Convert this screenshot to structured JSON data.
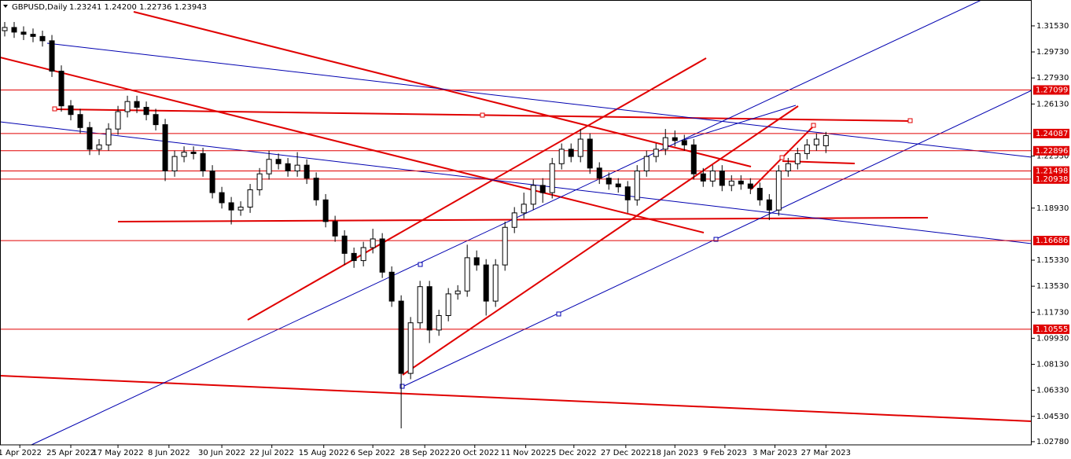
{
  "chart_data": {
    "type": "candlestick",
    "title": "GBPUSD,Daily",
    "subtitle": "1.23241 1.24200 1.22736 1.23943",
    "open": [
      1.312,
      1.3142,
      1.311,
      1.3095,
      1.308,
      1.305,
      1.284,
      1.26,
      1.254,
      1.245,
      1.23,
      1.233,
      1.244,
      1.256,
      1.263,
      1.259,
      1.254,
      1.247,
      1.215,
      1.225,
      1.228,
      1.227,
      1.215,
      1.2,
      1.193,
      1.188,
      1.19,
      1.202,
      1.213,
      1.223,
      1.22,
      1.215,
      1.219,
      1.21,
      1.195,
      1.18,
      1.17,
      1.158,
      1.153,
      1.162,
      1.168,
      1.145,
      1.125,
      1.075,
      1.11,
      1.135,
      1.105,
      1.115,
      1.13,
      1.132,
      1.155,
      1.15,
      1.125,
      1.15,
      1.176,
      1.186,
      1.192,
      1.205,
      1.2,
      1.22,
      1.23,
      1.225,
      1.237,
      1.217,
      1.21,
      1.206,
      1.204,
      1.195,
      1.215,
      1.225,
      1.23,
      1.238,
      1.236,
      1.233,
      1.213,
      1.208,
      1.215,
      1.205,
      1.208,
      1.206,
      1.203,
      1.195,
      1.188,
      1.215,
      1.22,
      1.227,
      1.233,
      1.23241
    ],
    "high": [
      1.318,
      1.318,
      1.315,
      1.3135,
      1.312,
      1.309,
      1.288,
      1.264,
      1.258,
      1.249,
      1.237,
      1.248,
      1.26,
      1.267,
      1.267,
      1.263,
      1.258,
      1.251,
      1.229,
      1.232,
      1.232,
      1.231,
      1.219,
      1.204,
      1.197,
      1.194,
      1.206,
      1.217,
      1.229,
      1.227,
      1.224,
      1.228,
      1.223,
      1.214,
      1.199,
      1.184,
      1.174,
      1.162,
      1.166,
      1.175,
      1.172,
      1.149,
      1.129,
      1.114,
      1.139,
      1.139,
      1.119,
      1.134,
      1.136,
      1.164,
      1.16,
      1.154,
      1.154,
      1.18,
      1.19,
      1.2,
      1.209,
      1.21,
      1.224,
      1.234,
      1.234,
      1.244,
      1.241,
      1.221,
      1.214,
      1.21,
      1.208,
      1.219,
      1.229,
      1.234,
      1.244,
      1.243,
      1.24,
      1.237,
      1.217,
      1.219,
      1.219,
      1.212,
      1.212,
      1.21,
      1.207,
      1.199,
      1.219,
      1.224,
      1.231,
      1.237,
      1.241,
      1.242
    ],
    "low": [
      1.308,
      1.307,
      1.3055,
      1.304,
      1.301,
      1.28,
      1.256,
      1.25,
      1.241,
      1.226,
      1.226,
      1.229,
      1.24,
      1.252,
      1.255,
      1.25,
      1.243,
      1.208,
      1.211,
      1.221,
      1.223,
      1.211,
      1.196,
      1.189,
      1.178,
      1.184,
      1.186,
      1.198,
      1.209,
      1.216,
      1.211,
      1.211,
      1.206,
      1.191,
      1.176,
      1.166,
      1.15,
      1.148,
      1.149,
      1.158,
      1.141,
      1.121,
      1.037,
      1.071,
      1.106,
      1.096,
      1.101,
      1.111,
      1.126,
      1.128,
      1.146,
      1.115,
      1.121,
      1.146,
      1.172,
      1.182,
      1.188,
      1.193,
      1.196,
      1.216,
      1.221,
      1.221,
      1.213,
      1.206,
      1.202,
      1.2,
      1.186,
      1.191,
      1.211,
      1.221,
      1.226,
      1.232,
      1.229,
      1.209,
      1.204,
      1.204,
      1.201,
      1.201,
      1.202,
      1.199,
      1.191,
      1.181,
      1.184,
      1.211,
      1.216,
      1.223,
      1.229,
      1.22736
    ],
    "close": [
      1.3142,
      1.311,
      1.3095,
      1.308,
      1.305,
      1.284,
      1.26,
      1.254,
      1.245,
      1.23,
      1.233,
      1.244,
      1.256,
      1.263,
      1.259,
      1.254,
      1.247,
      1.215,
      1.225,
      1.228,
      1.227,
      1.215,
      1.2,
      1.193,
      1.188,
      1.19,
      1.202,
      1.213,
      1.223,
      1.22,
      1.215,
      1.219,
      1.21,
      1.195,
      1.18,
      1.17,
      1.158,
      1.153,
      1.162,
      1.168,
      1.145,
      1.125,
      1.075,
      1.11,
      1.135,
      1.105,
      1.115,
      1.13,
      1.132,
      1.155,
      1.15,
      1.125,
      1.15,
      1.176,
      1.186,
      1.192,
      1.205,
      1.2,
      1.22,
      1.23,
      1.225,
      1.237,
      1.217,
      1.21,
      1.206,
      1.204,
      1.195,
      1.215,
      1.225,
      1.23,
      1.238,
      1.236,
      1.233,
      1.213,
      1.208,
      1.215,
      1.205,
      1.208,
      1.206,
      1.203,
      1.195,
      1.188,
      1.215,
      1.22,
      1.227,
      1.233,
      1.237,
      1.23943
    ],
    "xlim": [
      -0.5,
      108.8
    ],
    "xticks": [
      {
        "value": 1.6,
        "label": "1 Apr 2022"
      },
      {
        "value": 7,
        "label": "25 Apr 2022"
      },
      {
        "value": 12,
        "label": "17 May 2022"
      },
      {
        "value": 17.4,
        "label": "8 Jun 2022"
      },
      {
        "value": 23,
        "label": "30 Jun 2022"
      },
      {
        "value": 28.3,
        "label": "22 Jul 2022"
      },
      {
        "value": 33.8,
        "label": "15 Aug 2022"
      },
      {
        "value": 39,
        "label": "6 Sep 2022"
      },
      {
        "value": 44.5,
        "label": "28 Sep 2022"
      },
      {
        "value": 49.8,
        "label": "20 Oct 2022"
      },
      {
        "value": 55.2,
        "label": "11 Nov 2022"
      },
      {
        "value": 60.3,
        "label": "5 Dec 2022"
      },
      {
        "value": 65.8,
        "label": "27 Dec 2022"
      },
      {
        "value": 71,
        "label": "18 Jan 2023"
      },
      {
        "value": 76.3,
        "label": "9 Feb 2023"
      },
      {
        "value": 81.6,
        "label": "3 Mar 2023"
      },
      {
        "value": 87,
        "label": "27 Mar 2023"
      }
    ],
    "ylim": [
      1.0256,
      1.3332
    ],
    "yticks": [
      {
        "value": 1.3153,
        "label": "1.31530"
      },
      {
        "value": 1.2973,
        "label": "1.29730"
      },
      {
        "value": 1.2793,
        "label": "1.27930"
      },
      {
        "value": 1.2613,
        "label": "1.26130"
      },
      {
        "value": 1.2253,
        "label": "1.22530"
      },
      {
        "value": 1.1893,
        "label": "1.18930"
      },
      {
        "value": 1.1533,
        "label": "1.15330"
      },
      {
        "value": 1.1353,
        "label": "1.13530"
      },
      {
        "value": 1.1173,
        "label": "1.11730"
      },
      {
        "value": 1.0993,
        "label": "1.09930"
      },
      {
        "value": 1.0813,
        "label": "1.08130"
      },
      {
        "value": 1.0633,
        "label": "1.06330"
      },
      {
        "value": 1.0453,
        "label": "1.04530"
      },
      {
        "value": 1.0278,
        "label": "1.02780"
      }
    ],
    "levels": [
      1.27099,
      1.24087,
      1.22896,
      1.21498,
      1.20938,
      1.16686,
      1.10555
    ],
    "level_color": "#e00000",
    "grid": false
  }
}
